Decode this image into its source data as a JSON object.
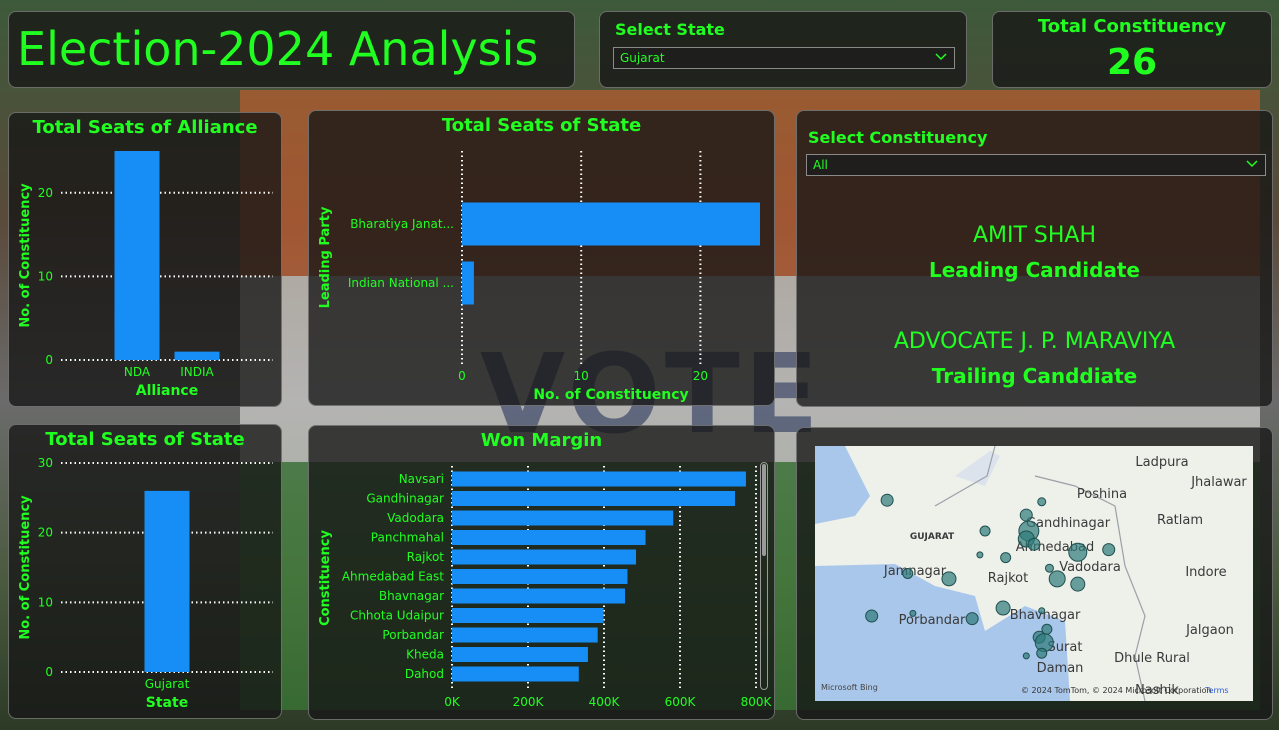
{
  "header": {
    "title": "Election-2024 Analysis"
  },
  "state_slicer": {
    "label": "Select State",
    "selected": "Gujarat",
    "icon": "chevron-down-icon"
  },
  "total_card": {
    "label": "Total Constituency",
    "value": "26"
  },
  "alliance_chart": {
    "title": "Total Seats of Alliance",
    "chart_data": {
      "type": "bar",
      "categories": [
        "NDA",
        "INDIA"
      ],
      "values": [
        25,
        1
      ],
      "xlabel": "Alliance",
      "ylabel": "No. of Constituency",
      "ylim": [
        0,
        25
      ],
      "ticks": [
        "0",
        "10",
        "20"
      ],
      "grid": true
    }
  },
  "party_chart": {
    "title": "Total Seats of State",
    "chart_data": {
      "type": "bar",
      "orientation": "horizontal",
      "categories": [
        "Bharatiya Janat...",
        "Indian National ..."
      ],
      "values": [
        25,
        1
      ],
      "xlabel": "No. of Constituency",
      "ylabel": "Leading Party",
      "xlim": [
        0,
        25
      ],
      "ticks": [
        "0",
        "10",
        "20"
      ],
      "grid": true
    }
  },
  "constituency_slicer": {
    "label": "Select Constituency",
    "selected": "All",
    "icon": "chevron-down-icon",
    "leading_name": "AMIT SHAH",
    "leading_label": "Leading Candidate",
    "trailing_name": "ADVOCATE J. P. MARAVIYA",
    "trailing_label": "Trailing Canddiate"
  },
  "state_chart": {
    "title": "Total Seats of State",
    "chart_data": {
      "type": "bar",
      "categories": [
        "Gujarat"
      ],
      "values": [
        26
      ],
      "xlabel": "State",
      "ylabel": "No. of Constituency",
      "ylim": [
        0,
        30
      ],
      "ticks": [
        "0",
        "10",
        "20",
        "30"
      ],
      "grid": true
    }
  },
  "margin_chart": {
    "title": "Won Margin",
    "chart_data": {
      "type": "bar",
      "orientation": "horizontal",
      "categories": [
        "Navsari",
        "Gandhinagar",
        "Vadodara",
        "Panchmahal",
        "Rajkot",
        "Ahmedabad East",
        "Bhavnagar",
        "Chhota Udaipur",
        "Porbandar",
        "Kheda",
        "Dahod"
      ],
      "values": [
        773551,
        744716,
        582126,
        509342,
        484260,
        461755,
        455289,
        398777,
        383360,
        357758,
        333677
      ],
      "ylabel": "Constituency",
      "xlim": [
        0,
        800000
      ],
      "ticks": [
        "0K",
        "200K",
        "400K",
        "600K",
        "800K"
      ],
      "grid": true
    }
  },
  "map": {
    "places": [
      "Ladpura",
      "Jhalawar",
      "Poshina",
      "Gandhinagar",
      "Ratlam",
      "GUJARAT",
      "Ahmedabad",
      "Vadodara",
      "Jamnagar",
      "Rajkot",
      "Indore",
      "Bhavnagar",
      "Porbandar",
      "Jalgaon",
      "Surat",
      "Daman",
      "Dhule Rural",
      "Nashik"
    ],
    "bubbles": [
      {
        "lat": 23.78,
        "lon": 69.9,
        "size": 6
      },
      {
        "lat": 23.75,
        "lon": 72.9,
        "size": 4
      },
      {
        "lat": 23.5,
        "lon": 72.6,
        "size": 6
      },
      {
        "lat": 23.2,
        "lon": 72.65,
        "size": 10
      },
      {
        "lat": 23.05,
        "lon": 72.6,
        "size": 8
      },
      {
        "lat": 22.7,
        "lon": 72.2,
        "size": 5
      },
      {
        "lat": 22.95,
        "lon": 72.75,
        "size": 6
      },
      {
        "lat": 22.3,
        "lon": 73.2,
        "size": 8
      },
      {
        "lat": 22.8,
        "lon": 73.6,
        "size": 9
      },
      {
        "lat": 22.85,
        "lon": 74.2,
        "size": 6
      },
      {
        "lat": 22.5,
        "lon": 73.05,
        "size": 4
      },
      {
        "lat": 22.3,
        "lon": 71.1,
        "size": 7
      },
      {
        "lat": 22.4,
        "lon": 70.3,
        "size": 5
      },
      {
        "lat": 22.2,
        "lon": 73.6,
        "size": 7
      },
      {
        "lat": 21.75,
        "lon": 72.15,
        "size": 7
      },
      {
        "lat": 21.7,
        "lon": 72.9,
        "size": 3
      },
      {
        "lat": 21.65,
        "lon": 70.4,
        "size": 3
      },
      {
        "lat": 21.6,
        "lon": 69.6,
        "size": 6
      },
      {
        "lat": 21.55,
        "lon": 71.55,
        "size": 6
      },
      {
        "lat": 21.2,
        "lon": 72.85,
        "size": 6
      },
      {
        "lat": 21.1,
        "lon": 72.95,
        "size": 9
      },
      {
        "lat": 20.9,
        "lon": 72.9,
        "size": 5
      },
      {
        "lat": 20.85,
        "lon": 72.6,
        "size": 3
      },
      {
        "lat": 23.2,
        "lon": 71.8,
        "size": 5
      },
      {
        "lat": 22.75,
        "lon": 71.7,
        "size": 3
      },
      {
        "lat": 21.35,
        "lon": 73.0,
        "size": 5
      }
    ],
    "attribution": "© 2024 TomTom, © 2024 Microsoft Corporation",
    "terms": "Terms",
    "provider": "Microsoft Bing"
  },
  "colors": {
    "accent": "#21ff21",
    "bar": "#168ef6",
    "bubble": "#2e7a7a"
  }
}
